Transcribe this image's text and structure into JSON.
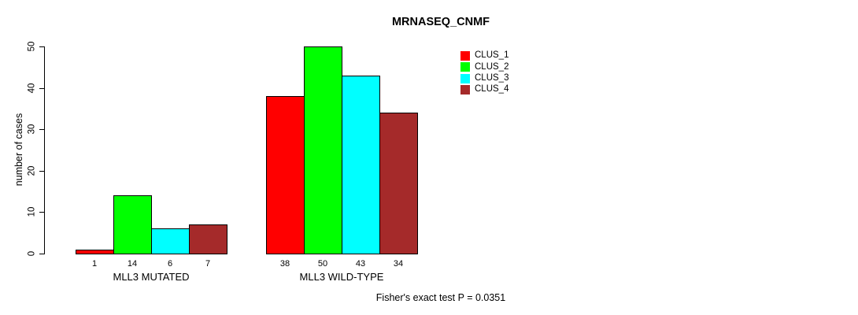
{
  "chart_data": {
    "type": "bar",
    "title": "MRNASEQ_CNMF",
    "ylabel": "number of cases",
    "xlabel": "",
    "ylim": [
      0,
      50
    ],
    "yticks": [
      0,
      10,
      20,
      30,
      40,
      50
    ],
    "grid": false,
    "legend_position": "top-right",
    "series": [
      {
        "name": "CLUS_1",
        "color": "#FF0000"
      },
      {
        "name": "CLUS_2",
        "color": "#00FF00"
      },
      {
        "name": "CLUS_3",
        "color": "#00FFFF"
      },
      {
        "name": "CLUS_4",
        "color": "#A52A2A"
      }
    ],
    "groups": [
      {
        "label": "MLL3 MUTATED",
        "values": [
          1,
          14,
          6,
          7
        ]
      },
      {
        "label": "MLL3 WILD-TYPE",
        "values": [
          38,
          50,
          43,
          34
        ]
      }
    ],
    "annotation": "Fisher's exact test P = 0.0351"
  }
}
